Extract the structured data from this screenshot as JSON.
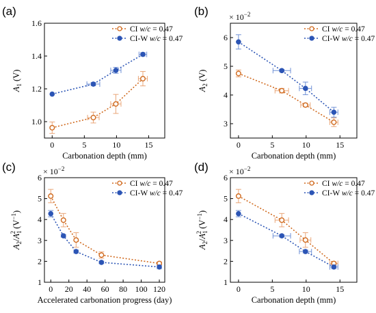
{
  "colors": {
    "ci": "#d0691d",
    "ciw": "#2c55b5",
    "ci_err": "#e9a577",
    "ciw_err": "#6f90d6"
  },
  "legend": {
    "ci_prefix": "CI ",
    "ciw_prefix": "CI-W ",
    "wc_label": "w/c",
    "wc_value": " = 0.47"
  },
  "chart_data": [
    {
      "panel_label": "(a)",
      "type": "scatter",
      "xlabel": "Carbonation depth (mm)",
      "ylabel_main": "A",
      "ylabel_sub": "1",
      "ylabel_unit": " (V)",
      "xlim": [
        -1.2,
        17.5
      ],
      "ylim": [
        0.9,
        1.6
      ],
      "xticks": [
        0,
        5,
        10,
        15
      ],
      "yticks": [
        1.0,
        1.2,
        1.4,
        1.6
      ],
      "ytick_labels": [
        "1.0",
        "1.2",
        "1.4",
        "1.6"
      ],
      "exponent": "",
      "series": [
        {
          "name": "CI",
          "x": [
            0,
            6.4,
            9.9,
            14.1
          ],
          "y": [
            0.963,
            1.025,
            1.108,
            1.262
          ],
          "xerr": [
            0,
            0.9,
            0.8,
            0.7
          ],
          "yerr": [
            0.035,
            0.033,
            0.058,
            0.044
          ]
        },
        {
          "name": "CI-W",
          "x": [
            0,
            6.4,
            9.9,
            14.1
          ],
          "y": [
            1.168,
            1.229,
            1.313,
            1.41
          ],
          "xerr": [
            0,
            1.0,
            0.8,
            0.6
          ],
          "yerr": [
            0,
            0.01,
            0.018,
            0.01
          ]
        }
      ]
    },
    {
      "panel_label": "(b)",
      "type": "scatter",
      "xlabel": "Carbonation depth (mm)",
      "ylabel_main": "A",
      "ylabel_sub": "2",
      "ylabel_unit": " (V)",
      "xlim": [
        -1.2,
        17.5
      ],
      "ylim": [
        2.5,
        6.5
      ],
      "xticks": [
        0,
        5,
        10,
        15
      ],
      "yticks": [
        3,
        4,
        5,
        6
      ],
      "ytick_labels": [
        "3",
        "4",
        "5",
        "6"
      ],
      "exponent": "−2",
      "series": [
        {
          "name": "CI",
          "x": [
            0,
            6.4,
            9.9,
            14.1
          ],
          "y": [
            4.75,
            4.15,
            3.65,
            3.05
          ],
          "xerr": [
            0,
            1.0,
            0.7,
            0.6
          ],
          "yerr": [
            0.12,
            0.08,
            0.06,
            0.15
          ]
        },
        {
          "name": "CI-W",
          "x": [
            0,
            6.4,
            9.9,
            14.1
          ],
          "y": [
            5.85,
            4.85,
            4.23,
            3.4
          ],
          "xerr": [
            0,
            1.3,
            0.9,
            0.6
          ],
          "yerr": [
            0.25,
            0.04,
            0.22,
            0.17
          ]
        }
      ]
    },
    {
      "panel_label": "(c)",
      "type": "scatter",
      "xlabel": "Accelerated carbonation progress (day)",
      "ylabel_main": "A",
      "ylabel_sub": "2",
      "ylabel_div": "/",
      "ylabel_main2": "A",
      "ylabel_sub2": "1",
      "ylabel_sup2": "2",
      "ylabel_unit": " (V",
      "ylabel_unit_sup": "−1",
      "ylabel_unit_end": ")",
      "xlim": [
        -7,
        126
      ],
      "ylim": [
        1,
        6
      ],
      "xticks": [
        0,
        20,
        40,
        60,
        80,
        100,
        120
      ],
      "yticks": [
        1,
        2,
        3,
        4,
        5,
        6
      ],
      "ytick_labels": [
        "1",
        "2",
        "3",
        "4",
        "5",
        "6"
      ],
      "exponent": "−2",
      "series": [
        {
          "name": "CI",
          "x": [
            0,
            14,
            28,
            56,
            120
          ],
          "y": [
            5.12,
            3.97,
            3.02,
            2.3,
            1.9
          ],
          "xerr": [
            0,
            0,
            0,
            0,
            0
          ],
          "yerr": [
            0.32,
            0.32,
            0.35,
            0.15,
            0.07
          ]
        },
        {
          "name": "CI-W",
          "x": [
            0,
            14,
            28,
            56,
            120
          ],
          "y": [
            4.28,
            3.22,
            2.47,
            1.95,
            1.73
          ],
          "xerr": [
            0,
            0,
            0,
            0,
            0
          ],
          "yerr": [
            0.15,
            0.06,
            0.07,
            0.06,
            0.08
          ]
        }
      ]
    },
    {
      "panel_label": "(d)",
      "type": "scatter",
      "xlabel": "Carbonation depth (mm)",
      "ylabel_main": "A",
      "ylabel_sub": "2",
      "ylabel_div": "/",
      "ylabel_main2": "A",
      "ylabel_sub2": "1",
      "ylabel_sup2": "2",
      "ylabel_unit": " (V",
      "ylabel_unit_sup": "−1",
      "ylabel_unit_end": ")",
      "xlim": [
        -1.2,
        17.5
      ],
      "ylim": [
        1,
        6
      ],
      "xticks": [
        0,
        5,
        10,
        15
      ],
      "yticks": [
        1,
        2,
        3,
        4,
        5,
        6
      ],
      "ytick_labels": [
        "1",
        "2",
        "3",
        "4",
        "5",
        "6"
      ],
      "exponent": "−2",
      "series": [
        {
          "name": "CI",
          "x": [
            0,
            6.4,
            9.9,
            14.1
          ],
          "y": [
            5.12,
            3.97,
            3.02,
            1.9
          ],
          "xerr": [
            0,
            1.0,
            0.8,
            0.6
          ],
          "yerr": [
            0.32,
            0.32,
            0.35,
            0.07
          ]
        },
        {
          "name": "CI-W",
          "x": [
            0,
            6.4,
            9.9,
            14.1
          ],
          "y": [
            4.28,
            3.22,
            2.47,
            1.73
          ],
          "xerr": [
            0,
            1.3,
            0.9,
            0.6
          ],
          "yerr": [
            0.15,
            0.06,
            0.07,
            0.08
          ]
        }
      ]
    }
  ]
}
